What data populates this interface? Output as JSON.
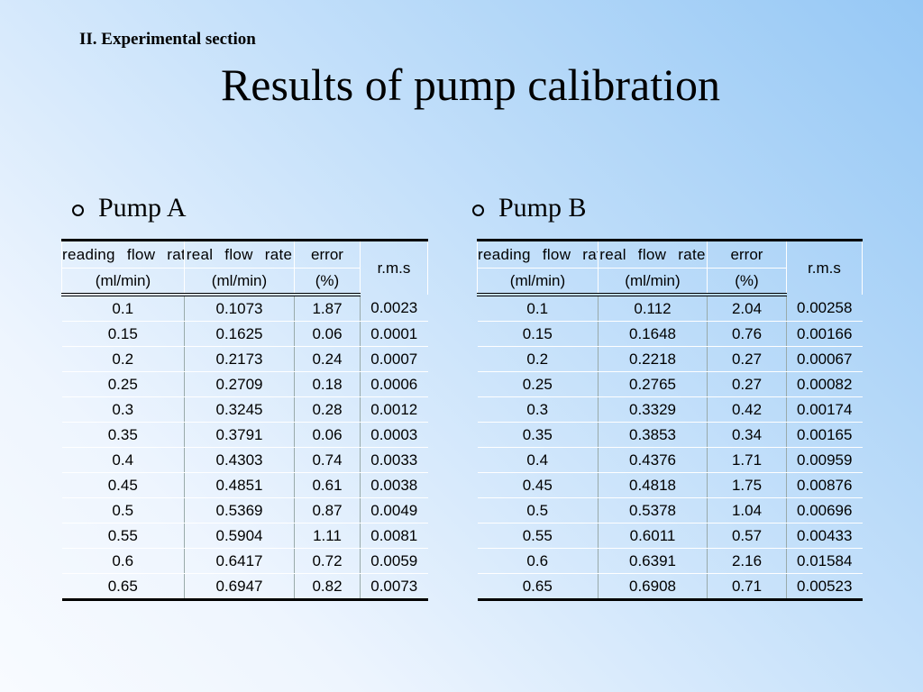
{
  "section_heading": "II. Experimental section",
  "title": "Results of pump calibration",
  "tables": [
    {
      "label": "Pump A",
      "headers": {
        "reading_top": "reading flow rate",
        "reading_unit": "(ml/min)",
        "real_top": "real flow rate",
        "real_unit": "(ml/min)",
        "error_top": "error",
        "error_unit": "(%)",
        "rms": "r.m.s"
      },
      "rows": [
        [
          "0.1",
          "0.1073",
          "1.87",
          "0.0023"
        ],
        [
          "0.15",
          "0.1625",
          "0.06",
          "0.0001"
        ],
        [
          "0.2",
          "0.2173",
          "0.24",
          "0.0007"
        ],
        [
          "0.25",
          "0.2709",
          "0.18",
          "0.0006"
        ],
        [
          "0.3",
          "0.3245",
          "0.28",
          "0.0012"
        ],
        [
          "0.35",
          "0.3791",
          "0.06",
          "0.0003"
        ],
        [
          "0.4",
          "0.4303",
          "0.74",
          "0.0033"
        ],
        [
          "0.45",
          "0.4851",
          "0.61",
          "0.0038"
        ],
        [
          "0.5",
          "0.5369",
          "0.87",
          "0.0049"
        ],
        [
          "0.55",
          "0.5904",
          "1.11",
          "0.0081"
        ],
        [
          "0.6",
          "0.6417",
          "0.72",
          "0.0059"
        ],
        [
          "0.65",
          "0.6947",
          "0.82",
          "0.0073"
        ]
      ]
    },
    {
      "label": "Pump B",
      "headers": {
        "reading_top": "reading flow rate",
        "reading_unit": "(ml/min)",
        "real_top": "real flow rate",
        "real_unit": "(ml/min)",
        "error_top": "error",
        "error_unit": "(%)",
        "rms": "r.m.s"
      },
      "rows": [
        [
          "0.1",
          "0.112",
          "2.04",
          "0.00258"
        ],
        [
          "0.15",
          "0.1648",
          "0.76",
          "0.00166"
        ],
        [
          "0.2",
          "0.2218",
          "0.27",
          "0.00067"
        ],
        [
          "0.25",
          "0.2765",
          "0.27",
          "0.00082"
        ],
        [
          "0.3",
          "0.3329",
          "0.42",
          "0.00174"
        ],
        [
          "0.35",
          "0.3853",
          "0.34",
          "0.00165"
        ],
        [
          "0.4",
          "0.4376",
          "1.71",
          "0.00959"
        ],
        [
          "0.45",
          "0.4818",
          "1.75",
          "0.00876"
        ],
        [
          "0.5",
          "0.5378",
          "1.04",
          "0.00696"
        ],
        [
          "0.55",
          "0.6011",
          "0.57",
          "0.00433"
        ],
        [
          "0.6",
          "0.6391",
          "2.16",
          "0.01584"
        ],
        [
          "0.65",
          "0.6908",
          "0.71",
          "0.00523"
        ]
      ]
    }
  ]
}
